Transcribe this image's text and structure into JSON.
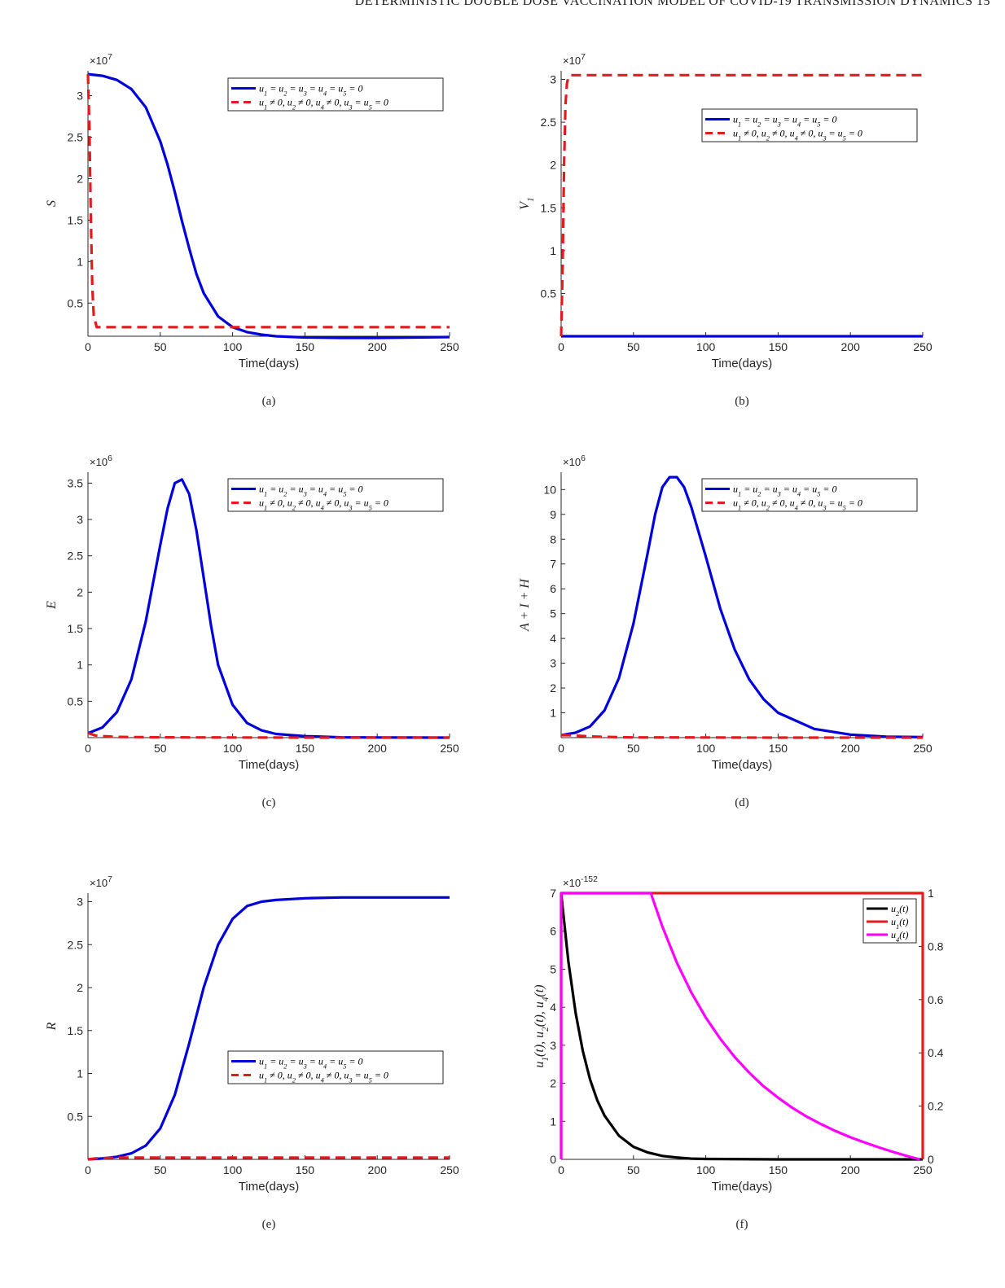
{
  "header_text": "DETERMINISTIC DOUBLE DOSE VACCINATION MODEL OF COVID-19 TRANSMISSION DYNAMICS 15",
  "chart_data": [
    {
      "id": "a",
      "type": "line",
      "caption": "(a)",
      "xlabel": "Time(days)",
      "ylabel": "S",
      "multiplier": "×10^7",
      "xlim": [
        0,
        250
      ],
      "ylim": [
        0.1,
        3.3
      ],
      "xticks": [
        0,
        50,
        100,
        150,
        200,
        250
      ],
      "yticks": [
        0.5,
        1,
        1.5,
        2,
        2.5,
        3
      ],
      "legend_position": "top-right",
      "series": [
        {
          "name": "u1 = u2 = u3 = u4 = u5 = 0",
          "color": "#0000dd",
          "style": "solid",
          "x": [
            0,
            10,
            20,
            30,
            40,
            50,
            55,
            60,
            65,
            70,
            75,
            80,
            90,
            100,
            110,
            120,
            130,
            150,
            175,
            200,
            225,
            250
          ],
          "y": [
            3.26,
            3.24,
            3.19,
            3.08,
            2.86,
            2.45,
            2.17,
            1.84,
            1.49,
            1.16,
            0.85,
            0.62,
            0.34,
            0.21,
            0.15,
            0.12,
            0.1,
            0.085,
            0.08,
            0.08,
            0.085,
            0.09
          ]
        },
        {
          "name": "u1 ≠ 0, u2 ≠ 0, u4 ≠ 0, u3 = u5 = 0",
          "color": "#e41a1c",
          "style": "dashed",
          "x": [
            0,
            1,
            2,
            3,
            4,
            6,
            10,
            50,
            100,
            150,
            200,
            250
          ],
          "y": [
            3.26,
            2.6,
            1.5,
            0.7,
            0.35,
            0.21,
            0.21,
            0.21,
            0.21,
            0.21,
            0.21,
            0.21
          ]
        }
      ]
    },
    {
      "id": "b",
      "type": "line",
      "caption": "(b)",
      "xlabel": "Time(days)",
      "ylabel": "V1",
      "multiplier": "×10^7",
      "xlim": [
        0,
        250
      ],
      "ylim": [
        0,
        3.1
      ],
      "xticks": [
        0,
        50,
        100,
        150,
        200,
        250
      ],
      "yticks": [
        0.5,
        1,
        1.5,
        2,
        2.5,
        3
      ],
      "legend_position": "top-right",
      "series": [
        {
          "name": "u1 = u2 = u3 = u4 = u5 = 0",
          "color": "#0000dd",
          "style": "solid",
          "x": [
            0,
            250
          ],
          "y": [
            0,
            0
          ]
        },
        {
          "name": "u1 ≠ 0, u2 ≠ 0, u4 ≠ 0, u3 = u5 = 0",
          "color": "#e41a1c",
          "style": "dashed",
          "x": [
            0,
            1,
            2,
            3,
            4,
            5,
            7,
            10,
            50,
            100,
            150,
            200,
            250
          ],
          "y": [
            0,
            0.8,
            2.0,
            2.7,
            2.95,
            3.03,
            3.05,
            3.05,
            3.05,
            3.05,
            3.05,
            3.05,
            3.05
          ]
        }
      ]
    },
    {
      "id": "c",
      "type": "line",
      "caption": "(c)",
      "xlabel": "Time(days)",
      "ylabel": "E",
      "multiplier": "×10^6",
      "xlim": [
        0,
        250
      ],
      "ylim": [
        0,
        3.65
      ],
      "xticks": [
        0,
        50,
        100,
        150,
        200,
        250
      ],
      "yticks": [
        0.5,
        1,
        1.5,
        2,
        2.5,
        3,
        3.5
      ],
      "legend_position": "top-right",
      "series": [
        {
          "name": "u1 = u2 = u3 = u4 = u5 = 0",
          "color": "#0000dd",
          "style": "solid",
          "x": [
            0,
            10,
            20,
            30,
            40,
            50,
            55,
            60,
            65,
            70,
            75,
            80,
            85,
            90,
            100,
            110,
            120,
            130,
            150,
            175,
            200,
            250
          ],
          "y": [
            0.06,
            0.14,
            0.35,
            0.8,
            1.6,
            2.65,
            3.15,
            3.5,
            3.55,
            3.35,
            2.85,
            2.2,
            1.55,
            1.0,
            0.45,
            0.2,
            0.1,
            0.05,
            0.02,
            0.005,
            0.002,
            0.0
          ]
        },
        {
          "name": "u1 ≠ 0, u2 ≠ 0, u4 ≠ 0, u3 = u5 = 0",
          "color": "#e41a1c",
          "style": "dashed",
          "x": [
            0,
            2,
            5,
            10,
            20,
            50,
            100,
            150,
            200,
            250
          ],
          "y": [
            0.06,
            0.05,
            0.03,
            0.02,
            0.01,
            0.005,
            0.002,
            0.0,
            0.0,
            0.0
          ]
        }
      ]
    },
    {
      "id": "d",
      "type": "line",
      "caption": "(d)",
      "xlabel": "Time(days)",
      "ylabel": "A + I + H",
      "multiplier": "×10^6",
      "xlim": [
        0,
        250
      ],
      "ylim": [
        0,
        10.7
      ],
      "xticks": [
        0,
        50,
        100,
        150,
        200,
        250
      ],
      "yticks": [
        1,
        2,
        3,
        4,
        5,
        6,
        7,
        8,
        9,
        10
      ],
      "legend_position": "top-right",
      "series": [
        {
          "name": "u1 = u2 = u3 = u4 = u5 = 0",
          "color": "#0000dd",
          "style": "solid",
          "x": [
            0,
            10,
            20,
            30,
            40,
            50,
            60,
            65,
            70,
            75,
            80,
            85,
            90,
            100,
            110,
            120,
            130,
            140,
            150,
            175,
            200,
            225,
            250
          ],
          "y": [
            0.1,
            0.2,
            0.45,
            1.1,
            2.4,
            4.6,
            7.5,
            9.0,
            10.1,
            10.5,
            10.5,
            10.1,
            9.3,
            7.3,
            5.2,
            3.55,
            2.35,
            1.55,
            1.0,
            0.35,
            0.12,
            0.04,
            0.02
          ]
        },
        {
          "name": "u1 ≠ 0, u2 ≠ 0, u4 ≠ 0, u3 = u5 = 0",
          "color": "#e41a1c",
          "style": "dashed",
          "x": [
            0,
            5,
            10,
            20,
            30,
            50,
            100,
            150,
            200,
            250
          ],
          "y": [
            0.1,
            0.1,
            0.08,
            0.05,
            0.03,
            0.01,
            0.005,
            0.0,
            0.0,
            0.0
          ]
        }
      ]
    },
    {
      "id": "e",
      "type": "line",
      "caption": "(e)",
      "xlabel": "Time(days)",
      "ylabel": "R",
      "multiplier": "×10^7",
      "xlim": [
        0,
        250
      ],
      "ylim": [
        0,
        3.1
      ],
      "xticks": [
        0,
        50,
        100,
        150,
        200,
        250
      ],
      "yticks": [
        0.5,
        1,
        1.5,
        2,
        2.5,
        3
      ],
      "legend_position": "center-right",
      "series": [
        {
          "name": "u1 = u2 = u3 = u4 = u5 = 0",
          "color": "#0000dd",
          "style": "solid",
          "x": [
            0,
            10,
            20,
            30,
            40,
            50,
            60,
            70,
            80,
            90,
            100,
            110,
            120,
            130,
            140,
            150,
            175,
            200,
            225,
            250
          ],
          "y": [
            0.0,
            0.01,
            0.03,
            0.07,
            0.16,
            0.36,
            0.75,
            1.35,
            2.0,
            2.5,
            2.8,
            2.95,
            3.0,
            3.02,
            3.03,
            3.04,
            3.05,
            3.05,
            3.05,
            3.05
          ]
        },
        {
          "name": "u1 ≠ 0, u2 ≠ 0, u4 ≠ 0, u3 = u5 = 0",
          "color": "#e41a1c",
          "style": "dashed",
          "x": [
            0,
            5,
            20,
            50,
            100,
            150,
            200,
            250
          ],
          "y": [
            0.0,
            0.01,
            0.02,
            0.02,
            0.02,
            0.02,
            0.02,
            0.02
          ]
        }
      ]
    },
    {
      "id": "f",
      "type": "line",
      "caption": "(f)",
      "xlabel": "Time(days)",
      "ylabel": "u1(t), u2(t), u4(t)",
      "multiplier": "×10^-152",
      "xlim": [
        0,
        250
      ],
      "ylim": [
        0,
        7
      ],
      "y2lim": [
        0,
        1
      ],
      "xticks": [
        0,
        50,
        100,
        150,
        200,
        250
      ],
      "yticks": [
        0,
        1,
        2,
        3,
        4,
        5,
        6,
        7
      ],
      "y2ticks": [
        0,
        0.2,
        0.4,
        0.6,
        0.8,
        1
      ],
      "left_axis_color": "#1a7fc1",
      "right_axis_color": "#d95319",
      "legend_position": "top-right",
      "series": [
        {
          "name": "u2(t)",
          "color": "#000000",
          "style": "solid",
          "axis": "left",
          "x": [
            0,
            5,
            10,
            15,
            20,
            25,
            30,
            40,
            50,
            60,
            70,
            80,
            90,
            100,
            150,
            200,
            250
          ],
          "y": [
            7.0,
            5.2,
            3.85,
            2.85,
            2.1,
            1.55,
            1.15,
            0.62,
            0.33,
            0.18,
            0.09,
            0.05,
            0.02,
            0.01,
            0.0,
            0.0,
            0.0
          ]
        },
        {
          "name": "u1(t)",
          "color": "#e41a1c",
          "style": "solid",
          "axis": "right",
          "x": [
            0,
            0.01,
            250,
            250
          ],
          "y": [
            0,
            1,
            1,
            0
          ]
        },
        {
          "name": "u4(t)",
          "color": "#ff00ff",
          "style": "solid",
          "axis": "left",
          "x": [
            0,
            0.01,
            62,
            70,
            80,
            90,
            100,
            110,
            120,
            130,
            140,
            150,
            160,
            170,
            180,
            190,
            200,
            210,
            220,
            230,
            240,
            248
          ],
          "y": [
            0,
            7.0,
            7.0,
            6.12,
            5.17,
            4.39,
            3.73,
            3.17,
            2.69,
            2.28,
            1.92,
            1.62,
            1.35,
            1.12,
            0.92,
            0.74,
            0.58,
            0.44,
            0.31,
            0.19,
            0.08,
            0.0
          ]
        }
      ]
    }
  ]
}
